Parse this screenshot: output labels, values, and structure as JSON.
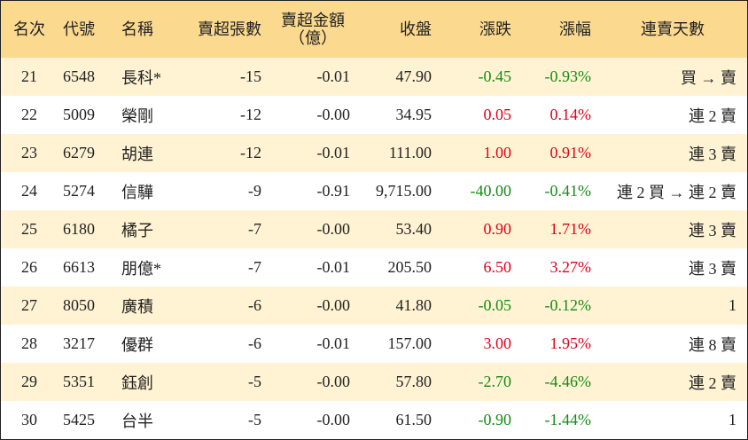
{
  "header": {
    "rank": "名次",
    "code": "代號",
    "name": "名稱",
    "net_sell_lots": "賣超張數",
    "net_sell_amount_line1": "賣超金額",
    "net_sell_amount_line2": "（億）",
    "close": "收盤",
    "change": "漲跌",
    "change_pct": "漲幅",
    "streak": "連賣天數"
  },
  "colors": {
    "header_bg": "#fbd98f",
    "odd_row_bg": "#fff3d3",
    "up": "#e0001b",
    "down": "#148c14"
  },
  "rows": [
    {
      "rank": "21",
      "code": "6548",
      "name": "長科*",
      "lots": "-15",
      "amount": "-0.01",
      "close": "47.90",
      "change": "-0.45",
      "pct": "-0.93%",
      "dir": "down",
      "streak": "買 → 賣"
    },
    {
      "rank": "22",
      "code": "5009",
      "name": "榮剛",
      "lots": "-12",
      "amount": "-0.00",
      "close": "34.95",
      "change": "0.05",
      "pct": "0.14%",
      "dir": "up",
      "streak": "連 2 賣"
    },
    {
      "rank": "23",
      "code": "6279",
      "name": "胡連",
      "lots": "-12",
      "amount": "-0.01",
      "close": "111.00",
      "change": "1.00",
      "pct": "0.91%",
      "dir": "up",
      "streak": "連 3 賣"
    },
    {
      "rank": "24",
      "code": "5274",
      "name": "信驊",
      "lots": "-9",
      "amount": "-0.91",
      "close": "9,715.00",
      "change": "-40.00",
      "pct": "-0.41%",
      "dir": "down",
      "streak": "連 2 買 → 連 2 賣"
    },
    {
      "rank": "25",
      "code": "6180",
      "name": "橘子",
      "lots": "-7",
      "amount": "-0.00",
      "close": "53.40",
      "change": "0.90",
      "pct": "1.71%",
      "dir": "up",
      "streak": "連 3 賣"
    },
    {
      "rank": "26",
      "code": "6613",
      "name": "朋億*",
      "lots": "-7",
      "amount": "-0.01",
      "close": "205.50",
      "change": "6.50",
      "pct": "3.27%",
      "dir": "up",
      "streak": "連 3 賣"
    },
    {
      "rank": "27",
      "code": "8050",
      "name": "廣積",
      "lots": "-6",
      "amount": "-0.00",
      "close": "41.80",
      "change": "-0.05",
      "pct": "-0.12%",
      "dir": "down",
      "streak": "1"
    },
    {
      "rank": "28",
      "code": "3217",
      "name": "優群",
      "lots": "-6",
      "amount": "-0.01",
      "close": "157.00",
      "change": "3.00",
      "pct": "1.95%",
      "dir": "up",
      "streak": "連 8 賣"
    },
    {
      "rank": "29",
      "code": "5351",
      "name": "鈺創",
      "lots": "-5",
      "amount": "-0.00",
      "close": "57.80",
      "change": "-2.70",
      "pct": "-4.46%",
      "dir": "down",
      "streak": "連 2 賣"
    },
    {
      "rank": "30",
      "code": "5425",
      "name": "台半",
      "lots": "-5",
      "amount": "-0.00",
      "close": "61.50",
      "change": "-0.90",
      "pct": "-1.44%",
      "dir": "down",
      "streak": "1"
    }
  ]
}
